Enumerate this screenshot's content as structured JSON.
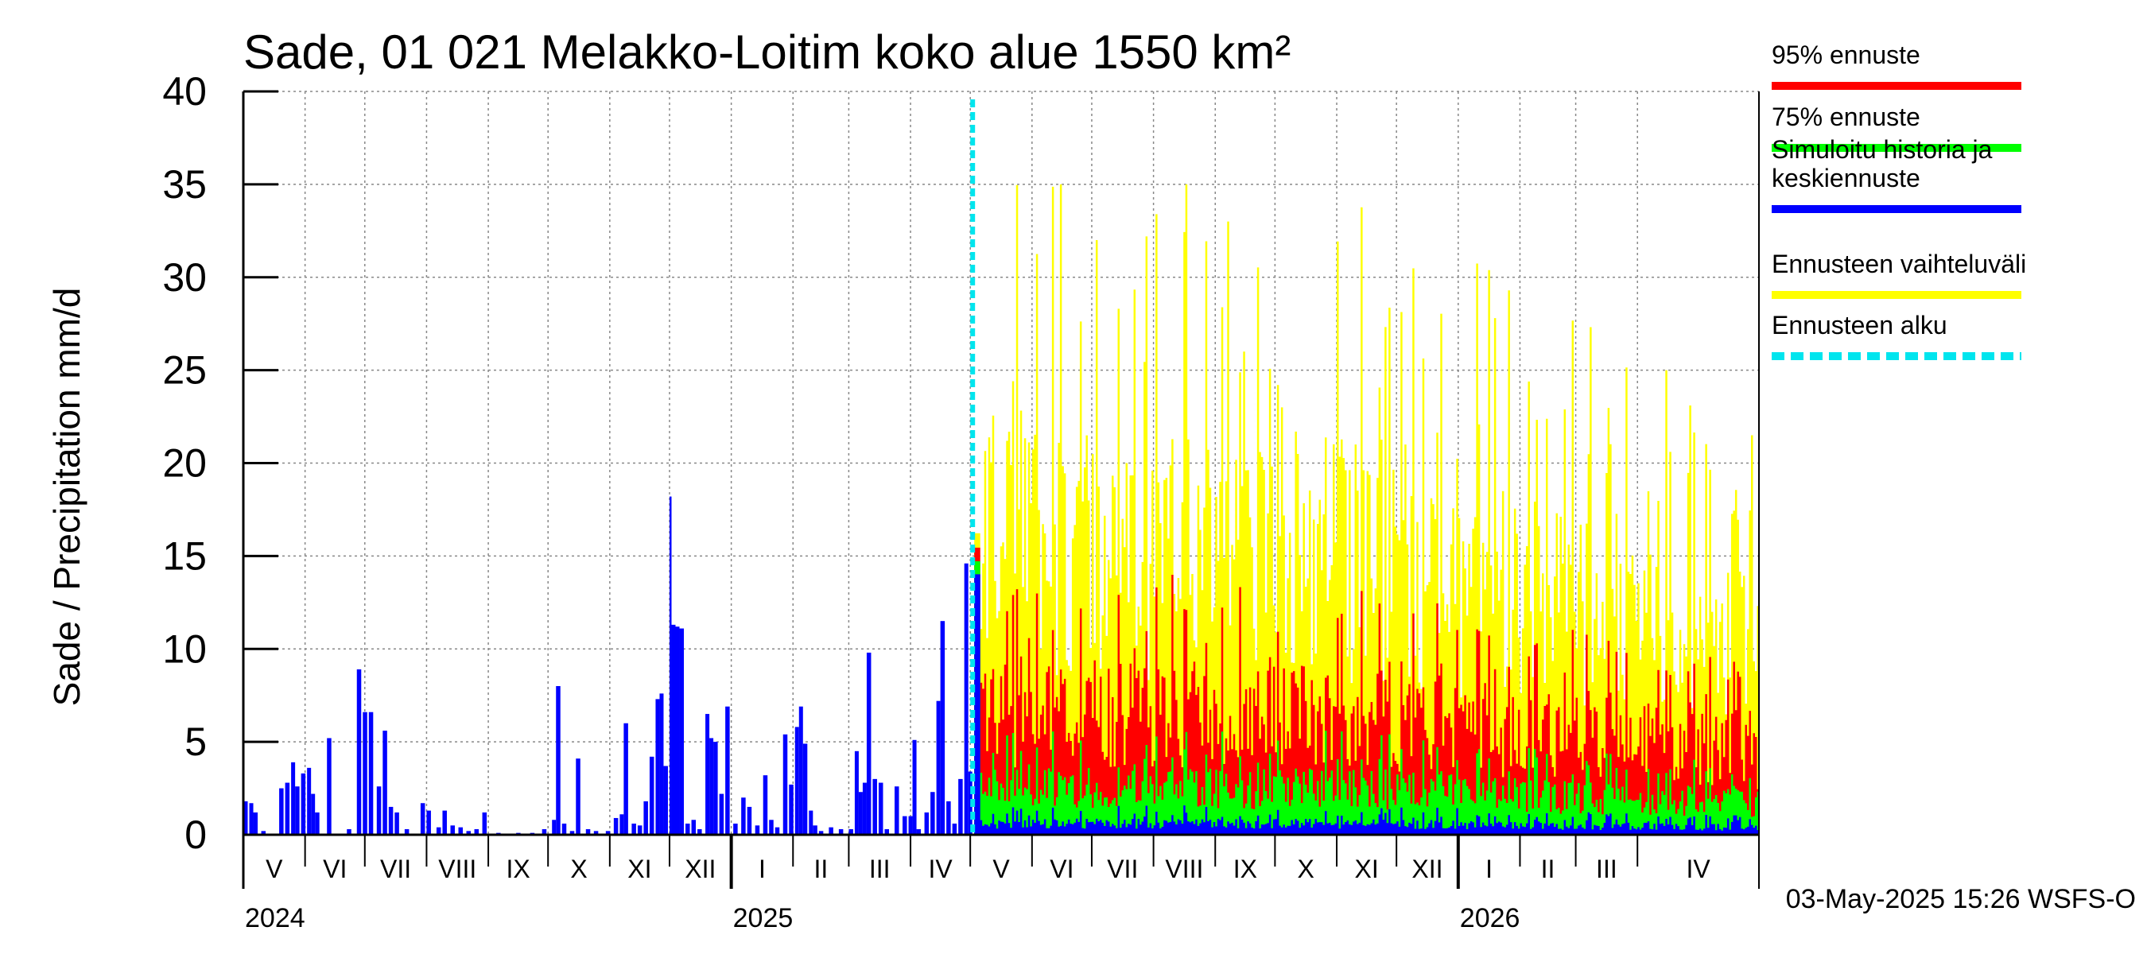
{
  "chart_data": {
    "type": "bar",
    "title": "Sade, 01 021 Melakko-Loitim koko alue 1550 km²",
    "ylabel": "Sade / Precipitation   mm/d",
    "ylim": [
      0,
      40
    ],
    "yticks": [
      "0",
      "5",
      "10",
      "15",
      "20",
      "25",
      "30",
      "35",
      "40"
    ],
    "grid": true,
    "x_start": "2024-05-01",
    "x_end": "2026-05-31",
    "forecast_start": "2025-05-03",
    "months": [
      {
        "label": "V",
        "start": "2024-05-01"
      },
      {
        "label": "VI",
        "start": "2024-06-01"
      },
      {
        "label": "VII",
        "start": "2024-07-01"
      },
      {
        "label": "VIII",
        "start": "2024-08-01"
      },
      {
        "label": "IX",
        "start": "2024-09-01"
      },
      {
        "label": "X",
        "start": "2024-10-01"
      },
      {
        "label": "XI",
        "start": "2024-11-01"
      },
      {
        "label": "XII",
        "start": "2024-12-01"
      },
      {
        "label": "I",
        "start": "2025-01-01"
      },
      {
        "label": "II",
        "start": "2025-02-01"
      },
      {
        "label": "III",
        "start": "2025-03-01"
      },
      {
        "label": "IV",
        "start": "2025-04-01"
      },
      {
        "label": "V",
        "start": "2025-05-01"
      },
      {
        "label": "VI",
        "start": "2025-06-01"
      },
      {
        "label": "VII",
        "start": "2025-07-01"
      },
      {
        "label": "VIII",
        "start": "2025-08-01"
      },
      {
        "label": "IX",
        "start": "2025-09-01"
      },
      {
        "label": "X",
        "start": "2025-10-01"
      },
      {
        "label": "XI",
        "start": "2025-11-01"
      },
      {
        "label": "XII",
        "start": "2025-12-01"
      },
      {
        "label": "I",
        "start": "2026-01-01"
      },
      {
        "label": "II",
        "start": "2026-02-01"
      },
      {
        "label": "III",
        "start": "2026-03-01"
      },
      {
        "label": "IV",
        "start": "2026-04-01"
      }
    ],
    "years": [
      {
        "label": "2024",
        "start": "2024-05-01"
      },
      {
        "label": "2025",
        "start": "2025-01-01"
      },
      {
        "label": "2026",
        "start": "2026-01-01"
      }
    ],
    "history": {
      "name": "Simuloitu historia ja keskiennuste",
      "color": "#0000ff",
      "points": [
        [
          "2024-05-01",
          1.8
        ],
        [
          "2024-05-04",
          1.7
        ],
        [
          "2024-05-06",
          1.2
        ],
        [
          "2024-05-10",
          0.2
        ],
        [
          "2024-05-19",
          2.5
        ],
        [
          "2024-05-22",
          2.8
        ],
        [
          "2024-05-25",
          3.9
        ],
        [
          "2024-05-27",
          2.6
        ],
        [
          "2024-05-30",
          3.3
        ],
        [
          "2024-06-02",
          3.6
        ],
        [
          "2024-06-04",
          2.2
        ],
        [
          "2024-06-06",
          1.2
        ],
        [
          "2024-06-12",
          5.2
        ],
        [
          "2024-06-22",
          0.3
        ],
        [
          "2024-06-27",
          8.9
        ],
        [
          "2024-06-30",
          6.6
        ],
        [
          "2024-07-03",
          6.6
        ],
        [
          "2024-07-07",
          2.6
        ],
        [
          "2024-07-10",
          5.6
        ],
        [
          "2024-07-13",
          1.5
        ],
        [
          "2024-07-16",
          1.2
        ],
        [
          "2024-07-21",
          0.3
        ],
        [
          "2024-07-29",
          1.7
        ],
        [
          "2024-08-01",
          1.3
        ],
        [
          "2024-08-06",
          0.4
        ],
        [
          "2024-08-09",
          1.3
        ],
        [
          "2024-08-13",
          0.5
        ],
        [
          "2024-08-17",
          0.4
        ],
        [
          "2024-08-21",
          0.2
        ],
        [
          "2024-08-25",
          0.3
        ],
        [
          "2024-08-29",
          1.2
        ],
        [
          "2024-09-05",
          0.1
        ],
        [
          "2024-09-15",
          0.1
        ],
        [
          "2024-09-22",
          0.1
        ],
        [
          "2024-09-28",
          0.3
        ],
        [
          "2024-10-03",
          0.8
        ],
        [
          "2024-10-05",
          8.0
        ],
        [
          "2024-10-08",
          0.6
        ],
        [
          "2024-10-12",
          0.2
        ],
        [
          "2024-10-15",
          4.1
        ],
        [
          "2024-10-20",
          0.3
        ],
        [
          "2024-10-24",
          0.2
        ],
        [
          "2024-10-30",
          0.2
        ],
        [
          "2024-11-03",
          0.9
        ],
        [
          "2024-11-06",
          1.1
        ],
        [
          "2024-11-08",
          6.0
        ],
        [
          "2024-11-12",
          0.6
        ],
        [
          "2024-11-15",
          0.5
        ],
        [
          "2024-11-18",
          1.8
        ],
        [
          "2024-11-21",
          4.2
        ],
        [
          "2024-11-24",
          7.3
        ],
        [
          "2024-11-26",
          7.6
        ],
        [
          "2024-11-28",
          3.7
        ],
        [
          "2024-12-01",
          18.2
        ],
        [
          "2024-12-02",
          11.3
        ],
        [
          "2024-12-04",
          11.2
        ],
        [
          "2024-12-06",
          11.1
        ],
        [
          "2024-12-09",
          0.6
        ],
        [
          "2024-12-12",
          0.8
        ],
        [
          "2024-12-15",
          0.3
        ],
        [
          "2024-12-19",
          6.5
        ],
        [
          "2024-12-21",
          5.2
        ],
        [
          "2024-12-23",
          5.0
        ],
        [
          "2024-12-26",
          2.2
        ],
        [
          "2024-12-29",
          6.9
        ],
        [
          "2025-01-02",
          0.6
        ],
        [
          "2025-01-06",
          2.0
        ],
        [
          "2025-01-09",
          1.5
        ],
        [
          "2025-01-13",
          0.5
        ],
        [
          "2025-01-17",
          3.2
        ],
        [
          "2025-01-20",
          0.8
        ],
        [
          "2025-01-23",
          0.4
        ],
        [
          "2025-01-27",
          5.4
        ],
        [
          "2025-01-30",
          2.7
        ],
        [
          "2025-02-02",
          5.8
        ],
        [
          "2025-02-04",
          6.9
        ],
        [
          "2025-02-06",
          4.9
        ],
        [
          "2025-02-09",
          1.3
        ],
        [
          "2025-02-11",
          0.5
        ],
        [
          "2025-02-14",
          0.2
        ],
        [
          "2025-02-19",
          0.4
        ],
        [
          "2025-02-24",
          0.3
        ],
        [
          "2025-03-01",
          0.3
        ],
        [
          "2025-03-04",
          4.5
        ],
        [
          "2025-03-06",
          2.3
        ],
        [
          "2025-03-08",
          2.8
        ],
        [
          "2025-03-10",
          9.8
        ],
        [
          "2025-03-13",
          3.0
        ],
        [
          "2025-03-16",
          2.8
        ],
        [
          "2025-03-19",
          0.3
        ],
        [
          "2025-03-24",
          2.6
        ],
        [
          "2025-03-28",
          1.0
        ],
        [
          "2025-03-31",
          1.0
        ],
        [
          "2025-04-02",
          5.1
        ],
        [
          "2025-04-04",
          0.3
        ],
        [
          "2025-04-08",
          1.2
        ],
        [
          "2025-04-11",
          2.3
        ],
        [
          "2025-04-14",
          7.2
        ],
        [
          "2025-04-16",
          11.5
        ],
        [
          "2025-04-19",
          1.8
        ],
        [
          "2025-04-22",
          0.6
        ],
        [
          "2025-04-25",
          3.0
        ],
        [
          "2025-04-28",
          14.6
        ],
        [
          "2025-04-30",
          3.4
        ]
      ]
    },
    "forecast_series": [
      {
        "name": "Ennusteen vaihteluväli",
        "color": "#ffff00",
        "typical": 15,
        "peak": 35
      },
      {
        "name": "95% ennuste",
        "color": "#ff0000",
        "typical": 6.5,
        "peak": 14
      },
      {
        "name": "75% ennuste",
        "color": "#00ff00",
        "typical": 2.5,
        "peak": 5.8
      },
      {
        "name": "Simuloitu historia ja keskiennuste",
        "color": "#0000ff",
        "typical": 0.6,
        "peak": 1.6
      }
    ],
    "forecast_peaks": [
      {
        "date": "2025-06-15",
        "value": 35
      },
      {
        "date": "2025-07-03",
        "value": 32
      },
      {
        "date": "2025-08-17",
        "value": 35
      },
      {
        "date": "2025-09-07",
        "value": 33
      },
      {
        "date": "2025-09-15",
        "value": 26
      },
      {
        "date": "2025-10-04",
        "value": 23
      },
      {
        "date": "2025-11-10",
        "value": 21
      },
      {
        "date": "2025-12-05",
        "value": 21
      },
      {
        "date": "2026-04-15",
        "value": 25
      },
      {
        "date": "2026-05-28",
        "value": 21.5
      }
    ],
    "legend": {
      "placement": "right",
      "items": [
        {
          "label": "95% ennuste",
          "color": "#ff0000",
          "style": "solid"
        },
        {
          "label": "75% ennuste",
          "color": "#00ff00",
          "style": "solid"
        },
        {
          "label": "Simuloitu historia ja\nkeskiennuste",
          "color": "#0000ff",
          "style": "solid"
        },
        {
          "label": "Ennusteen vaihteluväli",
          "color": "#ffff00",
          "style": "solid"
        },
        {
          "label": "Ennusteen alku",
          "color": "#00e5ee",
          "style": "dashed"
        }
      ]
    },
    "timestamp": "03-May-2025 15:26 WSFS-O"
  }
}
